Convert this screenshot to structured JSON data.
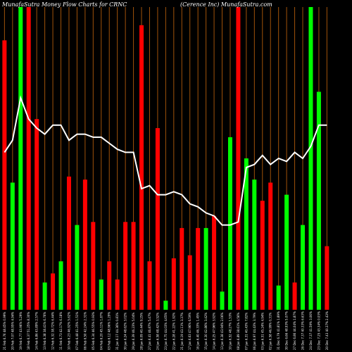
{
  "chart_data": {
    "type": "bar",
    "title_left": "MunafaSutra  Money Flow  Charts for CRNC",
    "title_right": "(Cerence   Inc) MunafaSutra.com",
    "ylim": [
      0,
      100
    ],
    "background": "#000000",
    "gridline_color": "#a0520a",
    "line_color": "#ffffff",
    "up_color": "#00ff00",
    "down_color": "#ff0000",
    "bars": [
      {
        "label": "21 Feb 6.76 48.45% 0.99%",
        "value": 89,
        "color": "red"
      },
      {
        "label": "20 Feb 7.07 48.95% 4.94%",
        "value": 42,
        "color": "green"
      },
      {
        "label": "19 Feb 6.77 43.96% 5.29%",
        "value": 100,
        "color": "green"
      },
      {
        "label": "18 Feb 6.37 51.25% 8.30%",
        "value": 100,
        "color": "red"
      },
      {
        "label": "14 Feb 6.86 43.89% 2.57%",
        "value": 63,
        "color": "red"
      },
      {
        "label": "13 Feb 6.38 38.41% 6.76%",
        "value": 9,
        "color": "green"
      },
      {
        "label": "12 Feb 6.32 38.72% 6.44%",
        "value": 12,
        "color": "red"
      },
      {
        "label": "11 Feb 6.73 42.17% 6.18%",
        "value": 16,
        "color": "green"
      },
      {
        "label": "10 Feb 6.23 46.92% 5.62%",
        "value": 44,
        "color": "red"
      },
      {
        "label": "07 Feb 6.48 41.25% 1.51%",
        "value": 28,
        "color": "green"
      },
      {
        "label": "06 Feb 6.50 42.24% 2.31%",
        "value": 43,
        "color": "red"
      },
      {
        "label": "05 Feb 6.34 46.55% 0.93%",
        "value": 29,
        "color": "red"
      },
      {
        "label": "04 Feb 6.20 45.11% 1.87%",
        "value": 10,
        "color": "green"
      },
      {
        "label": "03 Feb 6.12 48.96% 1.29%",
        "value": 16,
        "color": "red"
      },
      {
        "label": "31 Jan 6.17 44.36% 0.81%",
        "value": 10,
        "color": "red"
      },
      {
        "label": "30 Jan 6.24 48.62% 3.02%",
        "value": 29,
        "color": "red"
      },
      {
        "label": "29 Jan 6.39 46.23% 5.04%",
        "value": 29,
        "color": "red"
      },
      {
        "label": "28 Jan 6.09 40.44% 9.25%",
        "value": 94,
        "color": "red"
      },
      {
        "label": "27 Jan 6.41 46.87% 5.47%",
        "value": 16,
        "color": "red"
      },
      {
        "label": "24 Jan 6.58 48.42% 3.52%",
        "value": 60,
        "color": "red"
      },
      {
        "label": "23 Jan 6.75 44.03% 4.65%",
        "value": 3,
        "color": "green"
      },
      {
        "label": "22 Jan 6.28 41.22% 1.92%",
        "value": 17,
        "color": "red"
      },
      {
        "label": "21 Jan 6.19 43.11% 3.37%",
        "value": 27,
        "color": "red"
      },
      {
        "label": "17 Jan 6.63 47.96% 6.59%",
        "value": 18,
        "color": "red"
      },
      {
        "label": "16 Jan 6.40 46.33% 1.45%",
        "value": 27,
        "color": "red"
      },
      {
        "label": "15 Jan 6.30 42.86% 3.42%",
        "value": 27,
        "color": "green"
      },
      {
        "label": "14 Jan 6.25 47.96% 3.92%",
        "value": 31,
        "color": "red"
      },
      {
        "label": "13 Jan 6.38 43.94% 2.06%",
        "value": 6,
        "color": "green"
      },
      {
        "label": "10 Jan 6.52 48.27% 1.53%",
        "value": 57,
        "color": "green"
      },
      {
        "label": "08 Jan 6.89 38.61% 4.56%",
        "value": 100,
        "color": "red"
      },
      {
        "label": "07 Jan 6.31 40.43% 7.82%",
        "value": 50,
        "color": "green"
      },
      {
        "label": "06 Jan 6.97 44.43% 3.79%",
        "value": 43,
        "color": "green"
      },
      {
        "label": "03 Jan 6.51 45.24% 4.94%",
        "value": 36,
        "color": "red"
      },
      {
        "label": "02 Jan 6.58 46.99% 0.31%",
        "value": 42,
        "color": "red"
      },
      {
        "label": "31 Dec 6.79 41.81% 1.89%",
        "value": 8,
        "color": "green"
      },
      {
        "label": "30 Dec 6.66 48.93% 5.07%",
        "value": 38,
        "color": "green"
      },
      {
        "label": "27 Dec 6.86 44.04% 1.87%",
        "value": 9,
        "color": "red"
      },
      {
        "label": "26 Dec 7.37 40.33% 6.63%",
        "value": 28,
        "color": "green"
      },
      {
        "label": "24 Dec 7.37 41.59% 3.06%",
        "value": 100,
        "color": "green"
      },
      {
        "label": "23 Dec 7.25 43.34% 0.03%",
        "value": 72,
        "color": "green"
      },
      {
        "label": "20 Dec 7.43 40.37% 2.43%",
        "value": 21,
        "color": "red"
      }
    ],
    "line": [
      52,
      56,
      70,
      63,
      60,
      58,
      61,
      61,
      56,
      58,
      58,
      57,
      57,
      55,
      53,
      52,
      52,
      40,
      41,
      38,
      38,
      39,
      38,
      35,
      34,
      32,
      31,
      28,
      28,
      29,
      47,
      48,
      51,
      48,
      50,
      49,
      52,
      50,
      54,
      61,
      61
    ]
  }
}
